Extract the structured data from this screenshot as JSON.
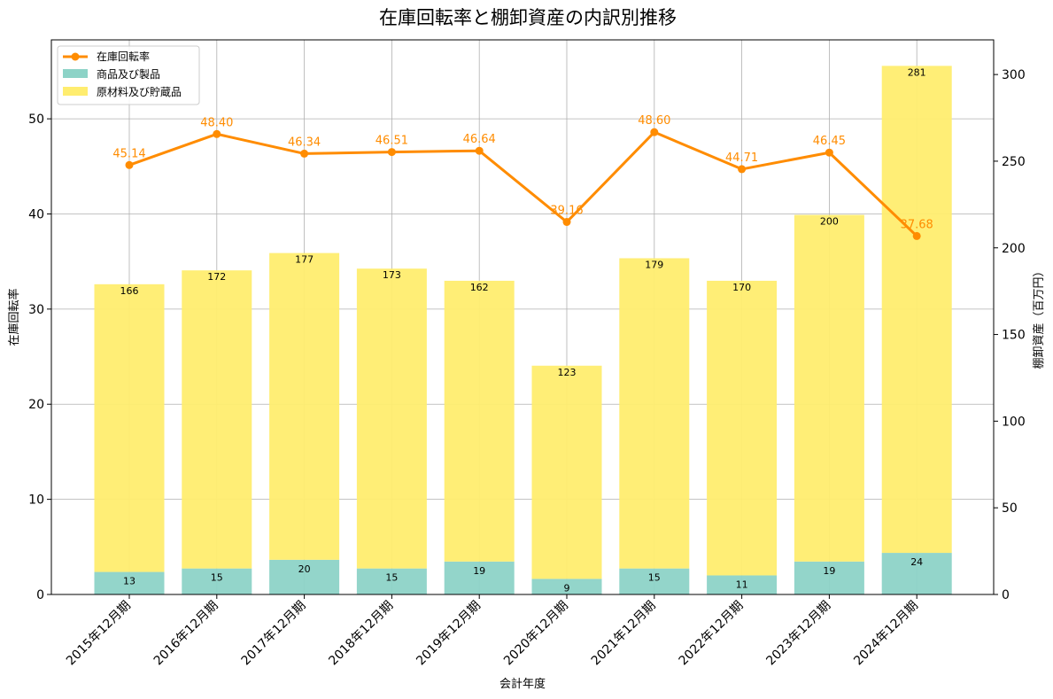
{
  "chart_data": {
    "type": "bar+line",
    "title": "在庫回転率と棚卸資産の内訳別推移",
    "xlabel": "会計年度",
    "ylabel_left": "在庫回転率",
    "ylabel_right": "棚卸資産（百万円）",
    "ylim_left": [
      0,
      58.3
    ],
    "ylim_right": [
      0,
      320
    ],
    "yticks_left": [
      "0",
      "10",
      "20",
      "30",
      "40",
      "50"
    ],
    "yticks_right": [
      "0",
      "50",
      "100",
      "150",
      "200",
      "250",
      "300"
    ],
    "categories": [
      "2015年12月期",
      "2016年12月期",
      "2017年12月期",
      "2018年12月期",
      "2019年12月期",
      "2020年12月期",
      "2021年12月期",
      "2022年12月期",
      "2023年12月期",
      "2024年12月期"
    ],
    "series": [
      {
        "name": "商品及び製品",
        "kind": "stacked-bar",
        "axis": "right",
        "color": "#8dd3c7",
        "values": [
          13,
          15,
          20,
          15,
          19,
          9,
          15,
          11,
          19,
          24
        ],
        "labels": [
          "13",
          "15",
          "20",
          "15",
          "19",
          "9",
          "15",
          "11",
          "19",
          "24"
        ]
      },
      {
        "name": "原材料及び貯蔵品",
        "kind": "stacked-bar",
        "axis": "right",
        "color": "#ffed6f",
        "values": [
          166,
          172,
          177,
          173,
          162,
          123,
          179,
          170,
          200,
          281
        ],
        "labels": [
          "166",
          "172",
          "177",
          "173",
          "162",
          "123",
          "179",
          "170",
          "200",
          "281"
        ]
      },
      {
        "name": "在庫回転率",
        "kind": "line",
        "axis": "left",
        "color": "#ff8c00",
        "values": [
          45.14,
          48.4,
          46.34,
          46.51,
          46.64,
          39.16,
          48.6,
          44.71,
          46.45,
          37.68
        ],
        "labels": [
          "45.14",
          "48.40",
          "46.34",
          "46.51",
          "46.64",
          "39.16",
          "48.60",
          "44.71",
          "46.45",
          "37.68"
        ]
      }
    ],
    "legend": {
      "position": "top-left",
      "items": [
        "在庫回転率",
        "商品及び製品",
        "原材料及び貯蔵品"
      ]
    },
    "grid": true
  }
}
